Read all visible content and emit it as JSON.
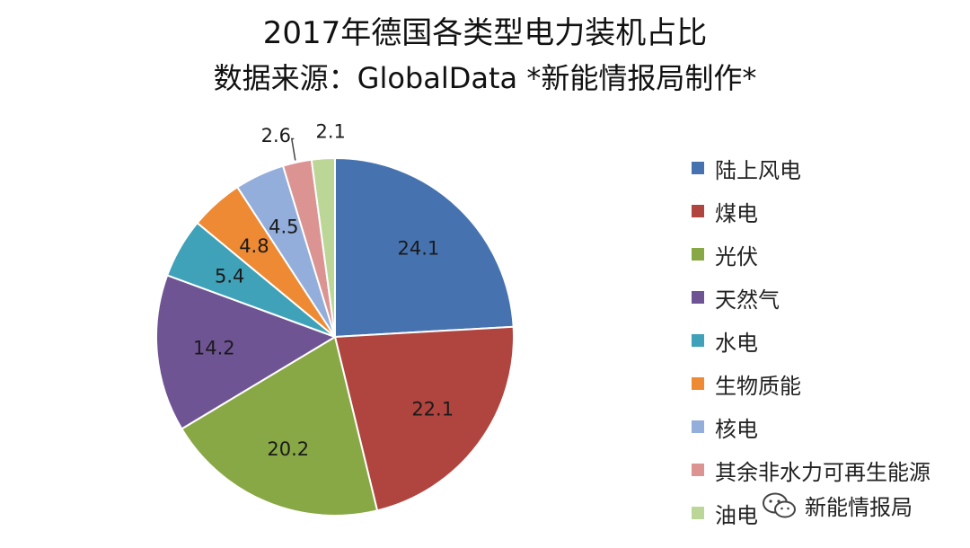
{
  "chart_data": {
    "type": "pie",
    "title": "2017年德国各类型电力装机占比",
    "subtitle": "数据来源：GlobalData  *新能情报局制作*",
    "legend_position": "right",
    "slices": [
      {
        "label": "陆上风电",
        "value": 24.1,
        "color": "#4673B0"
      },
      {
        "label": "煤电",
        "value": 22.1,
        "color": "#B0443F"
      },
      {
        "label": "光伏",
        "value": 20.2,
        "color": "#88A845"
      },
      {
        "label": "天然气",
        "value": 14.2,
        "color": "#6F5494"
      },
      {
        "label": "水电",
        "value": 5.4,
        "color": "#3FA2B8"
      },
      {
        "label": "生物质能",
        "value": 4.8,
        "color": "#EE8A33"
      },
      {
        "label": "核电",
        "value": 4.5,
        "color": "#93AEDB"
      },
      {
        "label": "其余非水力可再生能源",
        "value": 2.6,
        "color": "#DB9492"
      },
      {
        "label": "油电",
        "value": 2.1,
        "color": "#BBD697"
      }
    ]
  },
  "watermark": {
    "text": "新能情报局",
    "icon": "wechat-icon"
  }
}
